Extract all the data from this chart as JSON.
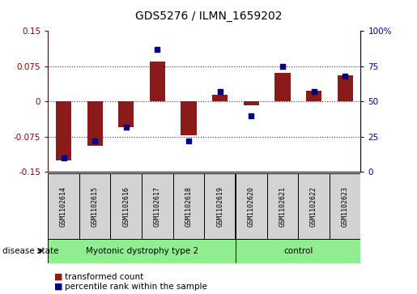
{
  "title": "GDS5276 / ILMN_1659202",
  "samples": [
    "GSM1102614",
    "GSM1102615",
    "GSM1102616",
    "GSM1102617",
    "GSM1102618",
    "GSM1102619",
    "GSM1102620",
    "GSM1102621",
    "GSM1102622",
    "GSM1102623"
  ],
  "transformed_count": [
    -0.125,
    -0.095,
    -0.055,
    0.085,
    -0.072,
    0.015,
    -0.008,
    0.06,
    0.022,
    0.055
  ],
  "percentile_rank": [
    10,
    22,
    32,
    87,
    22,
    57,
    40,
    75,
    57,
    68
  ],
  "groups": [
    {
      "label": "Myotonic dystrophy type 2",
      "start": 0,
      "end": 6,
      "color": "#90ee90"
    },
    {
      "label": "control",
      "start": 6,
      "end": 10,
      "color": "#90ee90"
    }
  ],
  "disease_state_label": "disease state",
  "ylim_left": [
    -0.15,
    0.15
  ],
  "ylim_right": [
    0,
    100
  ],
  "yticks_left": [
    -0.15,
    -0.075,
    0,
    0.075,
    0.15
  ],
  "yticks_right": [
    0,
    25,
    50,
    75,
    100
  ],
  "ytick_labels_left": [
    "-0.15",
    "-0.075",
    "0",
    "0.075",
    "0.15"
  ],
  "ytick_labels_right": [
    "0",
    "25",
    "50",
    "75",
    "100%"
  ],
  "bar_color": "#8B1A1A",
  "dot_color": "#00008B",
  "label_bar": "transformed count",
  "label_dot": "percentile rank within the sample",
  "axis_label_color_left": "#8B0000",
  "axis_label_color_right": "#00008B",
  "hline_values": [
    -0.075,
    0.0,
    0.075
  ],
  "hline_colors": [
    "#333333",
    "#cc0000",
    "#333333"
  ],
  "hline_styles": [
    ":",
    ":",
    ":"
  ],
  "group_separator": 5.5,
  "n_samples": 10,
  "bar_width": 0.5
}
